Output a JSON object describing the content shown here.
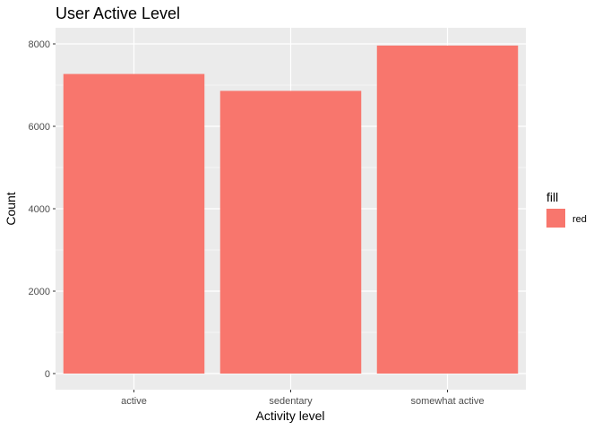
{
  "chart_data": {
    "type": "bar",
    "title": "User Active Level",
    "xlabel": "Activity level",
    "ylabel": "Count",
    "categories": [
      "active",
      "sedentary",
      "somewhat active"
    ],
    "values": [
      7270,
      6860,
      7960
    ],
    "ylim": [
      0,
      8400
    ],
    "yticks": [
      0,
      2000,
      4000,
      6000,
      8000
    ],
    "ytick_labels": [
      "0",
      "2000",
      "4000",
      "6000",
      "8000"
    ],
    "grid": true,
    "bar_color": "#F8766D",
    "panel_background": "#EBEBEB",
    "legend": {
      "title": "fill",
      "position": "right",
      "entries": [
        {
          "label": "red",
          "color": "#F8766D"
        }
      ]
    }
  }
}
